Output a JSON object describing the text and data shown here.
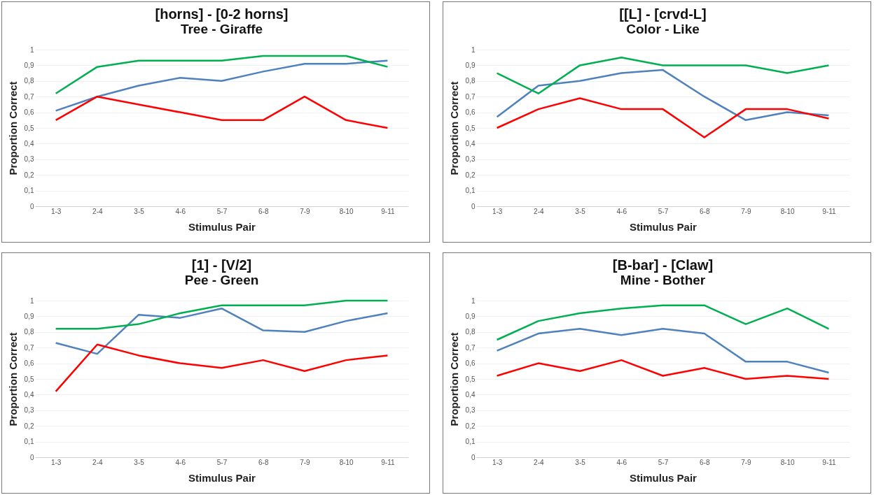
{
  "chart_data": [
    {
      "type": "line",
      "title": "[horns] - [0-2 horns]",
      "subtitle": "Tree - Giraffe",
      "xlabel": "Stimulus Pair",
      "ylabel": "Proportion Correct",
      "categories": [
        "1-3",
        "2-4",
        "3-5",
        "4-6",
        "5-7",
        "6-8",
        "7-9",
        "8-10",
        "9-11"
      ],
      "ylim": [
        0,
        1
      ],
      "yticks": [
        {
          "value": 0,
          "label": "0"
        },
        {
          "value": 0.1,
          "label": "0,1"
        },
        {
          "value": 0.2,
          "label": "0,2"
        },
        {
          "value": 0.3,
          "label": "0,3"
        },
        {
          "value": 0.4,
          "label": "0,4"
        },
        {
          "value": 0.5,
          "label": "0,5"
        },
        {
          "value": 0.6,
          "label": "0,6"
        },
        {
          "value": 0.7,
          "label": "0,7"
        },
        {
          "value": 0.8,
          "label": "0,8"
        },
        {
          "value": 0.9,
          "label": "0,9"
        },
        {
          "value": 1,
          "label": "1"
        }
      ],
      "grid": "y",
      "series": [
        {
          "color": "#4f81bd",
          "values": [
            0.61,
            0.7,
            0.77,
            0.82,
            0.8,
            0.86,
            0.91,
            0.91,
            0.93
          ]
        },
        {
          "color": "#ff0000",
          "values": [
            0.55,
            0.7,
            0.65,
            0.6,
            0.55,
            0.55,
            0.7,
            0.55,
            0.5
          ]
        },
        {
          "color": "#00b050",
          "values": [
            0.72,
            0.89,
            0.93,
            0.93,
            0.93,
            0.96,
            0.96,
            0.96,
            0.89
          ]
        }
      ]
    },
    {
      "type": "line",
      "title": "[[L] - [crvd-L]",
      "subtitle": "Color - Like",
      "xlabel": "Stimulus Pair",
      "ylabel": "Proportion Correct",
      "categories": [
        "1-3",
        "2-4",
        "3-5",
        "4-6",
        "5-7",
        "6-8",
        "7-9",
        "8-10",
        "9-11"
      ],
      "ylim": [
        0,
        1
      ],
      "yticks": [
        {
          "value": 0,
          "label": "0"
        },
        {
          "value": 0.1,
          "label": "0,1"
        },
        {
          "value": 0.2,
          "label": "0,2"
        },
        {
          "value": 0.3,
          "label": "0,3"
        },
        {
          "value": 0.4,
          "label": "0,4"
        },
        {
          "value": 0.5,
          "label": "0,5"
        },
        {
          "value": 0.6,
          "label": "0,6"
        },
        {
          "value": 0.7,
          "label": "0,7"
        },
        {
          "value": 0.8,
          "label": "0,8"
        },
        {
          "value": 0.9,
          "label": "0,9"
        },
        {
          "value": 1,
          "label": "1"
        }
      ],
      "grid": "y",
      "series": [
        {
          "color": "#4f81bd",
          "values": [
            0.57,
            0.77,
            0.8,
            0.85,
            0.87,
            0.7,
            0.55,
            0.6,
            0.58
          ]
        },
        {
          "color": "#ff0000",
          "values": [
            0.5,
            0.62,
            0.69,
            0.62,
            0.62,
            0.44,
            0.62,
            0.62,
            0.56
          ]
        },
        {
          "color": "#00b050",
          "values": [
            0.85,
            0.72,
            0.9,
            0.95,
            0.9,
            0.9,
            0.9,
            0.85,
            0.9
          ]
        }
      ]
    },
    {
      "type": "line",
      "title": "[1] - [V/2]",
      "subtitle": "Pee - Green",
      "xlabel": "Stimulus Pair",
      "ylabel": "Proportion Correct",
      "categories": [
        "1-3",
        "2-4",
        "3-5",
        "4-6",
        "5-7",
        "6-8",
        "7-9",
        "8-10",
        "9-11"
      ],
      "ylim": [
        0,
        1
      ],
      "yticks": [
        {
          "value": 0,
          "label": "0"
        },
        {
          "value": 0.1,
          "label": "0,1"
        },
        {
          "value": 0.2,
          "label": "0,2"
        },
        {
          "value": 0.3,
          "label": "0,3"
        },
        {
          "value": 0.4,
          "label": "0,4"
        },
        {
          "value": 0.5,
          "label": "0,5"
        },
        {
          "value": 0.6,
          "label": "0,6"
        },
        {
          "value": 0.7,
          "label": "0,7"
        },
        {
          "value": 0.8,
          "label": "0,8"
        },
        {
          "value": 0.9,
          "label": "0,9"
        },
        {
          "value": 1,
          "label": "1"
        }
      ],
      "grid": "y",
      "series": [
        {
          "color": "#4f81bd",
          "values": [
            0.73,
            0.66,
            0.91,
            0.89,
            0.95,
            0.81,
            0.8,
            0.87,
            0.92
          ]
        },
        {
          "color": "#ff0000",
          "values": [
            0.42,
            0.72,
            0.65,
            0.6,
            0.57,
            0.62,
            0.55,
            0.62,
            0.65
          ]
        },
        {
          "color": "#00b050",
          "values": [
            0.82,
            0.82,
            0.85,
            0.92,
            0.97,
            0.97,
            0.97,
            1,
            1
          ]
        }
      ]
    },
    {
      "type": "line",
      "title": "[B-bar] - [Claw]",
      "subtitle": "Mine - Bother",
      "xlabel": "Stimulus Pair",
      "ylabel": "Proportion Correct",
      "categories": [
        "1-3",
        "2-4",
        "3-5",
        "4-6",
        "5-7",
        "6-8",
        "7-9",
        "8-10",
        "9-11"
      ],
      "ylim": [
        0,
        1
      ],
      "yticks": [
        {
          "value": 0,
          "label": "0"
        },
        {
          "value": 0.1,
          "label": "0,1"
        },
        {
          "value": 0.2,
          "label": "0,2"
        },
        {
          "value": 0.3,
          "label": "0,3"
        },
        {
          "value": 0.4,
          "label": "0,4"
        },
        {
          "value": 0.5,
          "label": "0,5"
        },
        {
          "value": 0.6,
          "label": "0,6"
        },
        {
          "value": 0.7,
          "label": "0,7"
        },
        {
          "value": 0.8,
          "label": "0,8"
        },
        {
          "value": 0.9,
          "label": "0,9"
        },
        {
          "value": 1,
          "label": "1"
        }
      ],
      "grid": "y",
      "series": [
        {
          "color": "#4f81bd",
          "values": [
            0.68,
            0.79,
            0.82,
            0.78,
            0.82,
            0.79,
            0.61,
            0.61,
            0.54
          ]
        },
        {
          "color": "#ff0000",
          "values": [
            0.52,
            0.6,
            0.55,
            0.62,
            0.52,
            0.57,
            0.5,
            0.52,
            0.5
          ]
        },
        {
          "color": "#00b050",
          "values": [
            0.75,
            0.87,
            0.92,
            0.95,
            0.97,
            0.97,
            0.85,
            0.95,
            0.82
          ]
        }
      ]
    }
  ]
}
